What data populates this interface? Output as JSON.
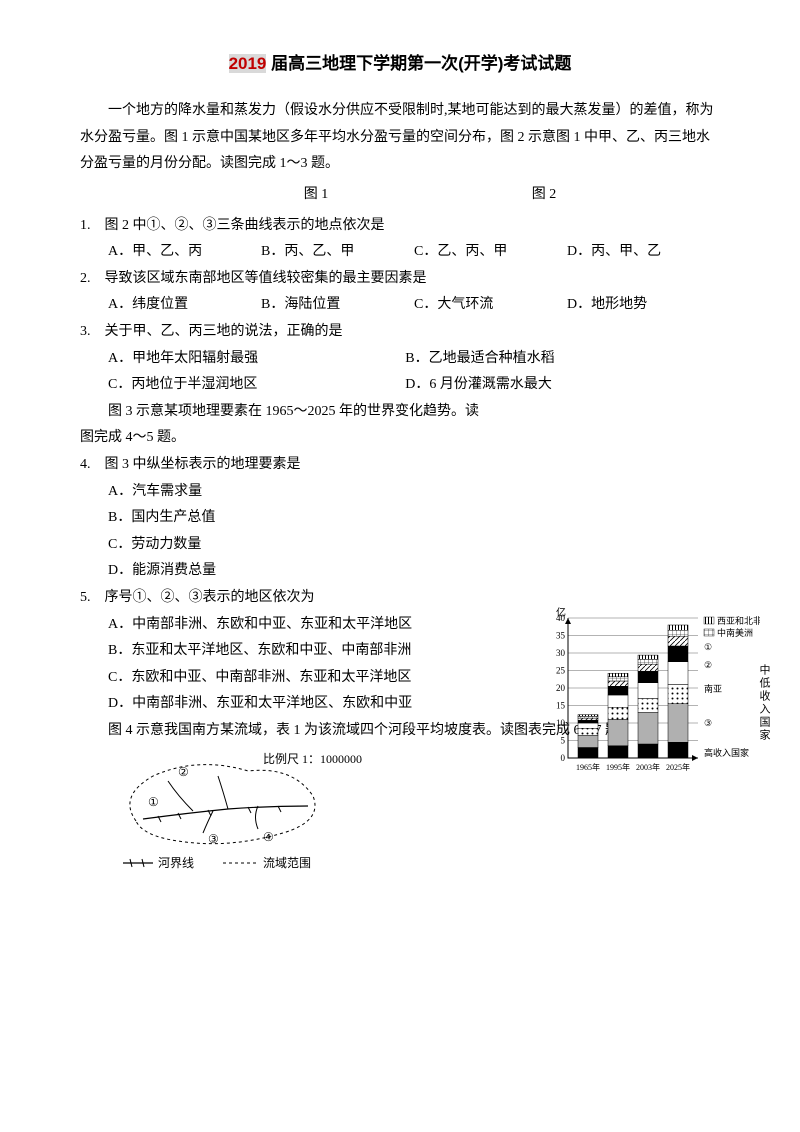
{
  "title": {
    "year": "2019",
    "rest": " 届高三地理下学期第一次(开学)考试试题"
  },
  "intro": {
    "p1": "一个地方的降水量和蒸发力（假设水分供应不受限制时,某地可能达到的最大蒸发量）的差值，称为水分盈亏量。图 1 示意中国某地区多年平均水分盈亏量的空间分布，图 2 示意图 1 中甲、乙、丙三地水分盈亏量的月份分配。读图完成 1～3 题。",
    "fig1": "图 1",
    "fig2": "图 2"
  },
  "q1": {
    "stem": "1.　图 2 中①、②、③三条曲线表示的地点依次是",
    "A": "A．甲、乙、丙",
    "B": "B．丙、乙、甲",
    "C": "C．乙、丙、甲",
    "D": "D．丙、甲、乙"
  },
  "q2": {
    "stem": "2.　导致该区域东南部地区等值线较密集的最主要因素是",
    "A": "A．纬度位置",
    "B": "B．海陆位置",
    "C": "C．大气环流",
    "D": "D．地形地势"
  },
  "q3": {
    "stem": "3.　关于甲、乙、丙三地的说法，正确的是",
    "A": "A．甲地年太阳辐射最强",
    "B": "B．乙地最适合种植水稻",
    "C": "C．丙地位于半湿润地区",
    "D": "D．6 月份灌溉需水最大"
  },
  "intro45": "图 3 示意某项地理要素在 1965～2025 年的世界变化趋势。读图完成 4～5 题。",
  "q4": {
    "stem": "4.　图 3 中纵坐标表示的地理要素是",
    "A": "A．汽车需求量",
    "B": "B．国内生产总值",
    "C": "C．劳动力数量",
    "D": "D．能源消费总量"
  },
  "q5": {
    "stem": "5.　序号①、②、③表示的地区依次为",
    "A": "A．中南部非洲、东欧和中亚、东亚和太平洋地区",
    "B": "B．东亚和太平洋地区、东欧和中亚、中南部非洲",
    "C": "C．东欧和中亚、中南部非洲、东亚和太平洋地区",
    "D": "D．中南部非洲、东亚和太平洋地区、东欧和中亚"
  },
  "intro67": "图 4 示意我国南方某流域，表 1 为该流域四个河段平均坡度表。读图表完成 6～7 题。",
  "chart": {
    "y_label": "亿",
    "y_ticks": [
      0,
      5,
      10,
      15,
      20,
      25,
      30,
      35,
      40
    ],
    "x_ticks": [
      "1965年",
      "1995年",
      "2003年",
      "2025年"
    ],
    "legend": {
      "l1": "西亚和北非",
      "l2": "中南美洲",
      "circ1": "①",
      "circ2": "②",
      "nanya": "南亚",
      "circ3": "③",
      "high": "高收入国家"
    },
    "v_label": "中低收入国家",
    "bars": {
      "1965": [
        3.0,
        3.5,
        2.0,
        1.5,
        0.8,
        0.6,
        0.5,
        0.5
      ],
      "1995": [
        3.5,
        7.5,
        3.5,
        3.5,
        2.5,
        1.5,
        1.2,
        1.0
      ],
      "2003": [
        4.0,
        9.0,
        4.0,
        4.5,
        3.3,
        2.0,
        1.4,
        1.2
      ],
      "2025": [
        4.5,
        11.0,
        5.5,
        6.5,
        4.5,
        2.8,
        1.7,
        1.5
      ]
    },
    "colors": {
      "seg0": "#000000",
      "seg1": "#b0b0b0",
      "seg2_pattern": "dots",
      "seg3": "#ffffff",
      "seg4": "#000000",
      "seg5_pattern": "hatch",
      "seg6_pattern": "grid",
      "seg7_pattern": "vstripe"
    }
  },
  "river_map": {
    "scale_label": "比例尺 1：1000000",
    "legend_boundary": "河界线",
    "legend_basin": "流域范围",
    "labels": [
      "①",
      "②",
      "③",
      "④"
    ]
  }
}
